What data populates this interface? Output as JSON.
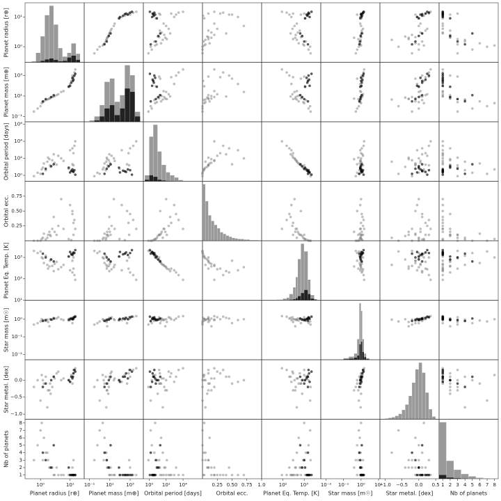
{
  "chart_data": {
    "type": "scatter_matrix",
    "variables": [
      {
        "label": "Planet radius [r⊕]",
        "log": true,
        "lim": [
          0.3,
          30
        ],
        "xticks": [
          {
            "value": 1,
            "label": "10⁰"
          },
          {
            "value": 10,
            "label": "10¹"
          }
        ],
        "yticks": [
          {
            "value": 1,
            "label": "10⁰"
          },
          {
            "value": 10,
            "label": "10¹"
          }
        ]
      },
      {
        "label": "Planet mass [m⊕]",
        "log": true,
        "lim": [
          0.03,
          20000
        ],
        "xticks": [
          {
            "value": 0.1,
            "label": "10⁻¹"
          },
          {
            "value": 10,
            "label": "10¹"
          },
          {
            "value": 1000,
            "label": "10³"
          }
        ],
        "yticks": [
          {
            "value": 0.1,
            "label": "10⁻¹"
          },
          {
            "value": 10,
            "label": "10¹"
          },
          {
            "value": 1000,
            "label": "10³"
          }
        ]
      },
      {
        "label": "Orbital period [days]",
        "log": true,
        "lim": [
          0.2,
          2000000
        ],
        "xticks": [
          {
            "value": 1,
            "label": "10⁰"
          },
          {
            "value": 100,
            "label": "10²"
          },
          {
            "value": 10000,
            "label": "10⁴"
          }
        ],
        "yticks": [
          {
            "value": 1,
            "label": "10⁰"
          },
          {
            "value": 100,
            "label": "10²"
          },
          {
            "value": 10000,
            "label": "10⁴"
          },
          {
            "value": 1000000,
            "label": "10⁶"
          }
        ]
      },
      {
        "label": "Orbital ecc.",
        "log": false,
        "lim": [
          0,
          1
        ],
        "xticks": [
          0.25,
          {
            "value": 0.5,
            "label": "0.50"
          },
          0.75,
          {
            "value": 1,
            "label": "1.0"
          }
        ],
        "yticks": [
          0.25,
          {
            "value": 0.5,
            "label": "0.50"
          },
          0.75
        ]
      },
      {
        "label": "Planet Eq. Temp. [K]",
        "log": true,
        "lim": [
          10,
          6000
        ],
        "xticks": [
          {
            "value": 100,
            "label": "10²"
          },
          {
            "value": 1000,
            "label": "10³"
          }
        ],
        "yticks": [
          {
            "value": 10,
            "label": "10¹"
          },
          {
            "value": 100,
            "label": "10²"
          },
          {
            "value": 1000,
            "label": "10³"
          }
        ]
      },
      {
        "label": "Star mass [m☉]",
        "log": true,
        "lim": [
          0.005,
          12
        ],
        "xticks": [
          {
            "value": 0.01,
            "label": "10⁻²"
          },
          {
            "value": 0.1,
            "label": "10⁻¹"
          },
          {
            "value": 1,
            "label": "10⁰"
          },
          {
            "value": 10,
            "label": "10¹"
          }
        ],
        "yticks": [
          {
            "value": 0.01,
            "label": "10⁻²"
          },
          {
            "value": 0.1,
            "label": "10⁻¹"
          },
          {
            "value": 1,
            "label": "10⁰"
          }
        ]
      },
      {
        "label": "Star metal. [dex]",
        "log": false,
        "lim": [
          -1.15,
          0.6
        ],
        "xticks": [
          {
            "value": -1,
            "label": "−1.0"
          },
          {
            "value": -0.5,
            "label": "−0.5"
          },
          {
            "value": 0,
            "label": "0.0"
          },
          {
            "value": 0.5,
            "label": "0.5"
          }
        ],
        "yticks": [
          {
            "value": -1,
            "label": "−1.0"
          },
          {
            "value": -0.5,
            "label": "−0.5"
          },
          {
            "value": 0,
            "label": "0.0"
          }
        ]
      },
      {
        "label": "Nb of planets",
        "log": false,
        "lim": [
          0.5,
          8.5
        ],
        "xticks": [
          1,
          2,
          3,
          4,
          5,
          6,
          7,
          8
        ],
        "yticks": [
          1,
          2,
          3,
          4,
          5,
          6,
          7,
          8
        ]
      }
    ],
    "samples": [
      {
        "color": "#808080",
        "alpha": 0.5,
        "points": [
          [
            1.2,
            2.5,
            8,
            0.05,
            900,
            0.9,
            0.0,
            3
          ],
          [
            2.1,
            6,
            15,
            0.1,
            700,
            1.0,
            -0.1,
            2
          ],
          [
            1.5,
            4,
            4,
            0.02,
            1200,
            0.8,
            0.1,
            4
          ],
          [
            3.0,
            10,
            30,
            0.15,
            500,
            1.1,
            0.05,
            1
          ],
          [
            2.5,
            8,
            60,
            0.2,
            400,
            0.95,
            -0.2,
            2
          ],
          [
            11,
            300,
            3,
            0.01,
            1500,
            1.2,
            0.15,
            1
          ],
          [
            13,
            700,
            400,
            0.3,
            300,
            1.0,
            0.2,
            1
          ],
          [
            12,
            1000,
            1500,
            0.45,
            200,
            1.1,
            0.1,
            2
          ],
          [
            10,
            150,
            900,
            0.6,
            250,
            0.9,
            -0.05,
            1
          ],
          [
            1.8,
            5,
            120,
            0.1,
            300,
            0.7,
            -0.3,
            3
          ],
          [
            0.8,
            0.6,
            2,
            0.0,
            1600,
            0.6,
            0.0,
            5
          ],
          [
            4,
            15,
            200,
            0.25,
            280,
            1.3,
            0.25,
            1
          ],
          [
            14,
            2000,
            3000,
            0.35,
            150,
            1.4,
            0.3,
            1
          ],
          [
            2.2,
            7,
            10,
            0.08,
            800,
            1.0,
            -0.4,
            2
          ],
          [
            1.3,
            3,
            25,
            0.12,
            550,
            0.85,
            -0.1,
            6
          ],
          [
            9,
            90,
            6,
            0.03,
            1100,
            1.05,
            0.0,
            1
          ],
          [
            6,
            30,
            50,
            0.2,
            450,
            0.9,
            0.05,
            1
          ],
          [
            1.0,
            1.0,
            1.5,
            0.0,
            1900,
            0.75,
            -0.6,
            7
          ],
          [
            2.8,
            9,
            300,
            0.4,
            230,
            1.2,
            0.1,
            1
          ],
          [
            15,
            4000,
            10000,
            0.2,
            90,
            1.5,
            0.35,
            1
          ],
          [
            0.6,
            0.3,
            0.8,
            0.0,
            2000,
            0.5,
            -0.2,
            3
          ],
          [
            1.7,
            4.5,
            40,
            0.05,
            450,
            0.95,
            -0.8,
            4
          ],
          [
            3.5,
            12,
            18,
            0.1,
            620,
            1.1,
            0.2,
            2
          ],
          [
            12,
            500,
            20,
            0.5,
            700,
            0.6,
            -0.1,
            1
          ],
          [
            2.0,
            5.5,
            80,
            0.15,
            380,
            0.4,
            -0.3,
            2
          ],
          [
            1.1,
            2,
            5,
            0.03,
            1000,
            1.0,
            0.15,
            8
          ],
          [
            5,
            25,
            100,
            0.7,
            350,
            1.0,
            0.0,
            1
          ],
          [
            13,
            800,
            15,
            0.1,
            1000,
            1.3,
            0.3,
            3
          ]
        ]
      },
      {
        "color": "#000000",
        "alpha": 0.65,
        "points": [
          [
            11,
            200,
            3.5,
            null,
            1400,
            1.1,
            0.1,
            1
          ],
          [
            13,
            400,
            2.5,
            null,
            1700,
            1.2,
            0.2,
            1
          ],
          [
            12,
            600,
            5,
            null,
            1300,
            1.0,
            0.05,
            1
          ],
          [
            1.5,
            5,
            6,
            null,
            1000,
            0.9,
            -0.1,
            3
          ],
          [
            2.3,
            8,
            12,
            null,
            800,
            0.95,
            0.0,
            2
          ],
          [
            14,
            1000,
            4,
            null,
            1600,
            1.3,
            0.3,
            1
          ],
          [
            10,
            100,
            2.2,
            null,
            1800,
            1.05,
            -0.05,
            1
          ],
          [
            1.2,
            3,
            1.5,
            null,
            1500,
            0.8,
            -0.2,
            4
          ],
          [
            12.5,
            300,
            3,
            null,
            1500,
            1.0,
            0.1,
            1
          ],
          [
            9,
            80,
            8,
            null,
            1100,
            0.9,
            0.0,
            2
          ],
          [
            15,
            1500,
            1.2,
            null,
            2200,
            1.4,
            0.25,
            1
          ],
          [
            2.8,
            12,
            20,
            null,
            650,
            1.1,
            0.1,
            5
          ]
        ]
      }
    ],
    "histograms": [
      {
        "bins": [
          0.5,
          0.7,
          1,
          1.4,
          2,
          2.8,
          4,
          5.6,
          8,
          11,
          16,
          22
        ],
        "series": [
          {
            "color": "#999999",
            "values": [
              2,
              20,
              55,
              100,
              120,
              80,
              30,
              12,
              20,
              40,
              18
            ]
          },
          {
            "color": "#222222",
            "values": [
              0,
              1,
              3,
              6,
              8,
              5,
              2,
              3,
              10,
              14,
              5
            ]
          }
        ]
      },
      {
        "bins": [
          0.1,
          0.3,
          1,
          3,
          10,
          30,
          100,
          300,
          1000,
          3000,
          10000
        ],
        "series": [
          {
            "color": "#999999",
            "values": [
              2,
              8,
              25,
              60,
              65,
              30,
              40,
              85,
              70,
              15
            ]
          },
          {
            "color": "#222222",
            "values": [
              0,
              2,
              8,
              20,
              25,
              10,
              20,
              50,
              45,
              8
            ]
          }
        ]
      },
      {
        "bins": [
          0.3,
          1,
          3,
          10,
          30,
          100,
          300,
          1000,
          3000,
          10000,
          100000,
          1000000
        ],
        "series": [
          {
            "color": "#999999",
            "values": [
              40,
              300,
              380,
              200,
              110,
              60,
              40,
              25,
              8,
              2,
              1
            ]
          },
          {
            "color": "#222222",
            "values": [
              10,
              40,
              30,
              10,
              5,
              2,
              1,
              0,
              0,
              0,
              0
            ]
          }
        ]
      },
      {
        "bins": [
          0,
          0.05,
          0.1,
          0.15,
          0.2,
          0.25,
          0.3,
          0.35,
          0.4,
          0.45,
          0.5,
          0.55,
          0.6,
          0.65,
          0.7,
          0.75,
          0.8,
          0.85,
          0.9,
          0.95,
          1
        ],
        "series": [
          {
            "color": "#999999",
            "values": [
              100,
              70,
              45,
              35,
              28,
              22,
              15,
              12,
              9,
              7,
              5,
              4,
              3,
              3,
              2,
              2,
              1,
              1,
              1,
              0
            ]
          }
        ]
      },
      {
        "bins": [
          50,
          100,
          150,
          200,
          300,
          400,
          500,
          700,
          1000,
          1500,
          2000,
          3000,
          4000
        ],
        "series": [
          {
            "color": "#999999",
            "values": [
              1,
              3,
              5,
              12,
              25,
              45,
              80,
              110,
              95,
              40,
              10,
              2
            ]
          },
          {
            "color": "#222222",
            "values": [
              0,
              0,
              0,
              1,
              2,
              4,
              8,
              14,
              20,
              12,
              3,
              1
            ]
          }
        ]
      },
      {
        "bins": [
          0.1,
          0.2,
          0.4,
          0.6,
          0.8,
          1.0,
          1.2,
          1.5,
          2,
          3
        ],
        "series": [
          {
            "color": "#999999",
            "values": [
              3,
              6,
              12,
              40,
              110,
              95,
              40,
              12,
              3
            ]
          },
          {
            "color": "#222222",
            "values": [
              1,
              2,
              4,
              8,
              30,
              35,
              15,
              5,
              1
            ]
          }
        ]
      },
      {
        "bins": [
          -1.0,
          -0.9,
          -0.8,
          -0.7,
          -0.6,
          -0.5,
          -0.4,
          -0.3,
          -0.2,
          -0.1,
          0.0,
          0.1,
          0.2,
          0.3,
          0.4,
          0.5
        ],
        "series": [
          {
            "color": "#999999",
            "values": [
              1,
              2,
              3,
              5,
              8,
              14,
              22,
              35,
              55,
              75,
              85,
              70,
              40,
              15,
              4
            ]
          }
        ]
      },
      {
        "bins": [
          0.5,
          1.5,
          2.5,
          3.5,
          4.5,
          5.5,
          6.5,
          7.5,
          8.5
        ],
        "series": [
          {
            "color": "#999999",
            "values": [
              600,
              190,
              95,
              50,
              25,
              10,
              5,
              2
            ]
          },
          {
            "color": "#222222",
            "values": [
              40,
              12,
              5,
              2,
              1,
              0,
              0,
              0
            ]
          }
        ]
      }
    ]
  }
}
